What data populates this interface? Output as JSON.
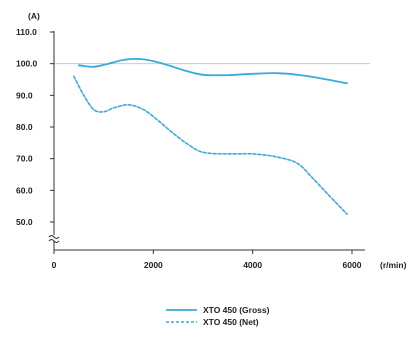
{
  "chart_data": {
    "type": "line",
    "ylabel": "(A)",
    "xlabel": "(r/min)",
    "xlim": [
      0,
      6000
    ],
    "ylim": [
      50,
      110
    ],
    "xticks": [
      0,
      2000,
      4000,
      6000
    ],
    "xtick_labels": [
      "0",
      "2000",
      "4000",
      "6000"
    ],
    "yticks": [
      50,
      60,
      70,
      80,
      90,
      100,
      110
    ],
    "ytick_labels": [
      "50.0",
      "60.0",
      "70.0",
      "80.0",
      "90.0",
      "100.0",
      "110.0"
    ],
    "axis_break": "y-axis below 50.0",
    "grid": "horizontal line at 100.0",
    "legend_position": "bottom-right",
    "colors": {
      "line": "#3aa9dc",
      "axis": "#333333",
      "grid": "#cccccc"
    },
    "series": [
      {
        "name": "XTO 450 (Gross)",
        "style": "solid",
        "x": [
          500,
          800,
          1100,
          1400,
          1700,
          2000,
          2300,
          2600,
          3000,
          3500,
          4000,
          4500,
          5000,
          5500,
          5900
        ],
        "values": [
          99.5,
          99.0,
          100.0,
          101.2,
          101.5,
          100.8,
          99.5,
          98.0,
          96.5,
          96.4,
          96.8,
          97.0,
          96.3,
          95.0,
          93.8
        ]
      },
      {
        "name": "XTO 450 (Net)",
        "style": "dashed",
        "x": [
          400,
          600,
          800,
          1000,
          1200,
          1500,
          1800,
          2100,
          2400,
          2700,
          3000,
          3500,
          4000,
          4500,
          4900,
          5200,
          5500,
          5900
        ],
        "values": [
          96.0,
          90.0,
          85.5,
          84.8,
          86.0,
          87.0,
          85.5,
          82.0,
          78.0,
          74.5,
          72.0,
          71.5,
          71.5,
          70.5,
          68.5,
          64.0,
          59.0,
          52.5
        ]
      }
    ]
  }
}
